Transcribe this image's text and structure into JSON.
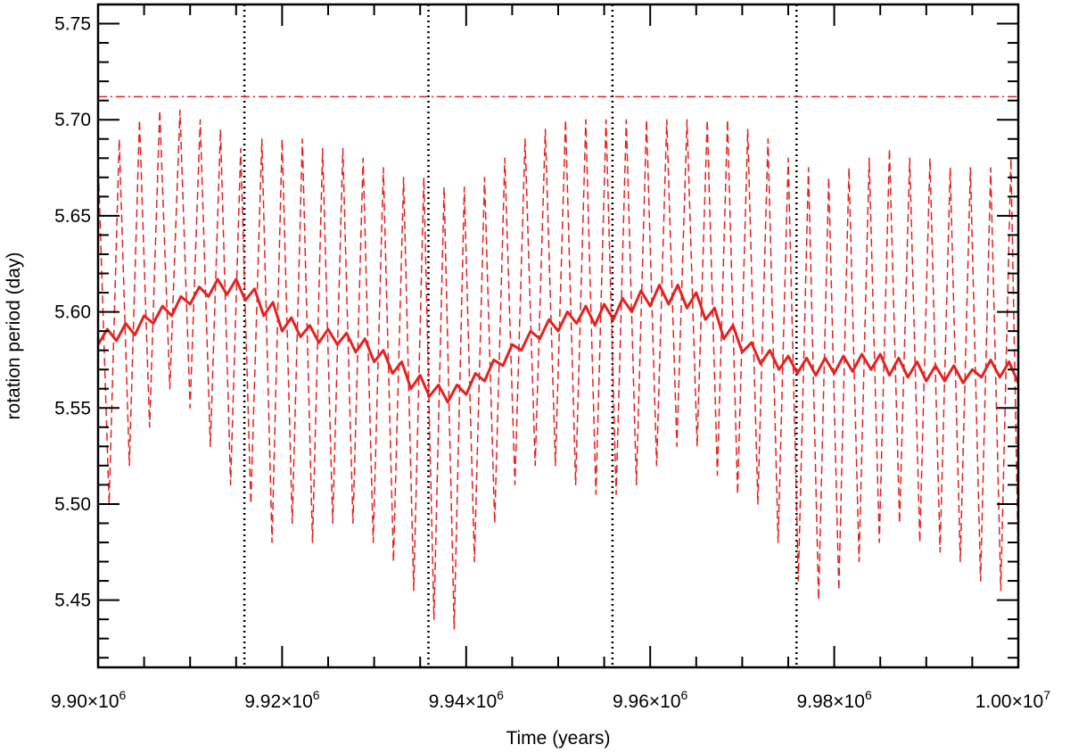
{
  "chart_data": {
    "type": "line",
    "title": "",
    "xlabel": "Time (years)",
    "ylabel": "rotation period (day)",
    "xlim": [
      9900000,
      10000000
    ],
    "ylim": [
      5.415,
      5.76
    ],
    "x_ticks": [
      {
        "value": 9900000,
        "mantissa": "9.90",
        "exp": "6"
      },
      {
        "value": 9920000,
        "mantissa": "9.92",
        "exp": "6"
      },
      {
        "value": 9940000,
        "mantissa": "9.94",
        "exp": "6"
      },
      {
        "value": 9960000,
        "mantissa": "9.96",
        "exp": "6"
      },
      {
        "value": 9980000,
        "mantissa": "9.98",
        "exp": "6"
      },
      {
        "value": 10000000,
        "mantissa": "1.00",
        "exp": "7"
      }
    ],
    "y_ticks": [
      {
        "value": 5.45,
        "label": "5.45"
      },
      {
        "value": 5.5,
        "label": "5.50"
      },
      {
        "value": 5.55,
        "label": "5.55"
      },
      {
        "value": 5.6,
        "label": "5.60"
      },
      {
        "value": 5.65,
        "label": "5.65"
      },
      {
        "value": 5.7,
        "label": "5.70"
      },
      {
        "value": 5.75,
        "label": "5.75"
      }
    ],
    "grid": false,
    "legend": "none",
    "vertical_markers": [
      9915900,
      9935900,
      9955900,
      9975900
    ],
    "reference_line": {
      "y": 5.712,
      "color": "#e32222",
      "style": "dash-dot"
    },
    "series": [
      {
        "style": "dashed",
        "color": "#e32222",
        "x": [
          9900000,
          9901200,
          9902300,
          9903400,
          9904500,
          9905600,
          9906700,
          9907800,
          9908900,
          9910000,
          9911100,
          9912200,
          9913300,
          9914400,
          9915500,
          9916600,
          9917800,
          9918900,
          9920000,
          9921100,
          9922200,
          9923300,
          9924400,
          9925500,
          9926600,
          9927700,
          9928800,
          9929900,
          9931000,
          9932100,
          9933200,
          9934300,
          9935400,
          9936500,
          9937600,
          9938700,
          9939800,
          9940900,
          9942000,
          9943100,
          9944200,
          9945300,
          9946400,
          9947500,
          9948600,
          9949700,
          9950800,
          9951900,
          9953000,
          9954100,
          9955200,
          9956300,
          9957400,
          9958500,
          9959600,
          9960700,
          9961800,
          9962900,
          9964000,
          9965100,
          9966200,
          9967300,
          9968400,
          9969500,
          9970600,
          9971700,
          9972800,
          9973900,
          9975000,
          9976100,
          9977200,
          9978300,
          9979400,
          9980500,
          9981600,
          9982700,
          9983800,
          9984900,
          9986000,
          9987100,
          9988200,
          9989300,
          9990400,
          9991500,
          9992600,
          9993700,
          9994800,
          9995900,
          9997000,
          9998100,
          9999200,
          10000000
        ],
        "y": [
          5.68,
          5.5,
          5.69,
          5.52,
          5.7,
          5.54,
          5.705,
          5.56,
          5.705,
          5.55,
          5.7,
          5.53,
          5.695,
          5.51,
          5.685,
          5.5,
          5.69,
          5.48,
          5.69,
          5.49,
          5.69,
          5.48,
          5.685,
          5.49,
          5.685,
          5.49,
          5.68,
          5.48,
          5.675,
          5.47,
          5.67,
          5.455,
          5.67,
          5.44,
          5.665,
          5.435,
          5.665,
          5.47,
          5.67,
          5.49,
          5.68,
          5.51,
          5.69,
          5.52,
          5.695,
          5.52,
          5.7,
          5.51,
          5.7,
          5.505,
          5.7,
          5.505,
          5.7,
          5.51,
          5.7,
          5.52,
          5.7,
          5.53,
          5.7,
          5.53,
          5.7,
          5.515,
          5.7,
          5.505,
          5.695,
          5.5,
          5.69,
          5.48,
          5.68,
          5.46,
          5.675,
          5.45,
          5.67,
          5.455,
          5.675,
          5.47,
          5.68,
          5.48,
          5.685,
          5.49,
          5.68,
          5.48,
          5.68,
          5.475,
          5.675,
          5.47,
          5.675,
          5.46,
          5.675,
          5.455,
          5.68,
          5.47
        ]
      },
      {
        "style": "solid",
        "color": "#e32222",
        "x": [
          9900000,
          9901000,
          9902000,
          9903000,
          9904000,
          9905000,
          9906000,
          9907000,
          9908000,
          9909000,
          9910000,
          9911000,
          9912000,
          9913000,
          9914000,
          9915000,
          9916000,
          9917000,
          9918000,
          9919000,
          9920000,
          9921000,
          9922000,
          9923000,
          9924000,
          9925000,
          9926000,
          9927000,
          9928000,
          9929000,
          9930000,
          9931000,
          9932000,
          9933000,
          9934000,
          9935000,
          9936000,
          9937000,
          9938000,
          9939000,
          9940000,
          9941000,
          9942000,
          9943000,
          9944000,
          9945000,
          9946000,
          9947000,
          9948000,
          9949000,
          9950000,
          9951000,
          9952000,
          9953000,
          9954000,
          9955000,
          9956000,
          9957000,
          9958000,
          9959000,
          9960000,
          9961000,
          9962000,
          9963000,
          9964000,
          9965000,
          9966000,
          9967000,
          9968000,
          9969000,
          9970000,
          9971000,
          9972000,
          9973000,
          9974000,
          9975000,
          9976000,
          9977000,
          9978000,
          9979000,
          9980000,
          9981000,
          9982000,
          9983000,
          9984000,
          9985000,
          9986000,
          9987000,
          9988000,
          9989000,
          9990000,
          9991000,
          9992000,
          9993000,
          9994000,
          9995000,
          9996000,
          9997000,
          9998000,
          9999000,
          10000000
        ],
        "y": [
          5.583,
          5.591,
          5.585,
          5.594,
          5.588,
          5.598,
          5.594,
          5.603,
          5.598,
          5.608,
          5.604,
          5.613,
          5.608,
          5.617,
          5.609,
          5.617,
          5.606,
          5.612,
          5.598,
          5.605,
          5.59,
          5.597,
          5.587,
          5.593,
          5.584,
          5.591,
          5.583,
          5.589,
          5.579,
          5.586,
          5.574,
          5.58,
          5.568,
          5.574,
          5.56,
          5.567,
          5.556,
          5.562,
          5.553,
          5.562,
          5.557,
          5.568,
          5.564,
          5.575,
          5.572,
          5.583,
          5.58,
          5.59,
          5.586,
          5.596,
          5.59,
          5.6,
          5.594,
          5.603,
          5.593,
          5.604,
          5.596,
          5.607,
          5.6,
          5.611,
          5.603,
          5.614,
          5.604,
          5.614,
          5.602,
          5.61,
          5.596,
          5.602,
          5.586,
          5.593,
          5.579,
          5.584,
          5.573,
          5.58,
          5.57,
          5.577,
          5.568,
          5.576,
          5.567,
          5.576,
          5.568,
          5.577,
          5.569,
          5.578,
          5.57,
          5.578,
          5.567,
          5.576,
          5.566,
          5.574,
          5.564,
          5.572,
          5.564,
          5.572,
          5.563,
          5.57,
          5.566,
          5.575,
          5.566,
          5.574,
          5.563
        ]
      }
    ]
  }
}
